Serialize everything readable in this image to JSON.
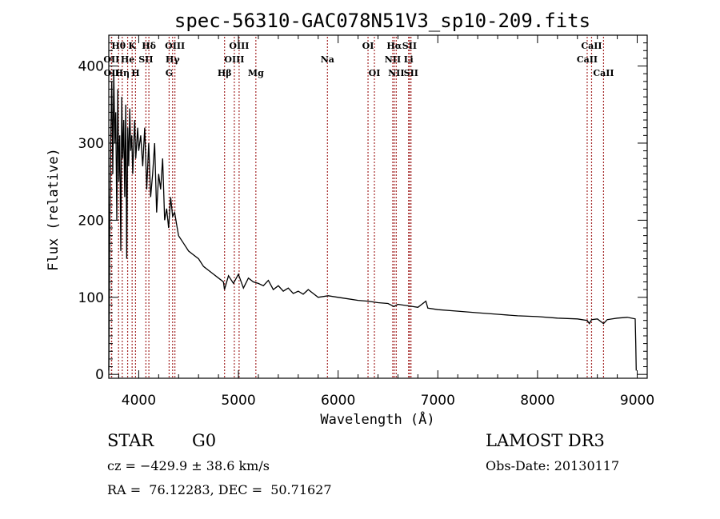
{
  "chart_data": {
    "type": "line",
    "title": "spec-56310-GAC078N51V3_sp10-209.fits",
    "xlabel": "Wavelength (Å)",
    "ylabel": "Flux (relative)",
    "xlim": [
      3700,
      9100
    ],
    "ylim": [
      -5,
      440
    ],
    "xticks": [
      4000,
      5000,
      6000,
      7000,
      8000,
      9000
    ],
    "xtick_labels": [
      "4000",
      "5000",
      "6000",
      "7000",
      "8000",
      "9000"
    ],
    "yticks": [
      0,
      100,
      200,
      300,
      400
    ],
    "ytick_labels": [
      "0",
      "100",
      "200",
      "300",
      "400"
    ],
    "grid": false,
    "series": [
      {
        "name": "spectrum",
        "color": "#000000",
        "x": [
          3700,
          3710,
          3720,
          3730,
          3740,
          3750,
          3760,
          3770,
          3780,
          3790,
          3800,
          3810,
          3820,
          3830,
          3840,
          3850,
          3860,
          3870,
          3880,
          3890,
          3900,
          3910,
          3920,
          3930,
          3940,
          3950,
          3960,
          3970,
          3980,
          3990,
          4000,
          4020,
          4040,
          4060,
          4080,
          4100,
          4120,
          4140,
          4160,
          4180,
          4200,
          4220,
          4240,
          4260,
          4280,
          4300,
          4320,
          4340,
          4360,
          4380,
          4400,
          4450,
          4500,
          4550,
          4600,
          4650,
          4700,
          4750,
          4800,
          4850,
          4860,
          4900,
          4950,
          5000,
          5050,
          5100,
          5150,
          5200,
          5250,
          5300,
          5350,
          5400,
          5450,
          5500,
          5550,
          5600,
          5650,
          5700,
          5750,
          5800,
          5900,
          6000,
          6100,
          6200,
          6300,
          6400,
          6500,
          6560,
          6600,
          6700,
          6800,
          6880,
          6900,
          7000,
          7200,
          7400,
          7600,
          7800,
          8000,
          8200,
          8400,
          8498,
          8520,
          8542,
          8600,
          8662,
          8700,
          8800,
          8900,
          8980,
          8985,
          8990
        ],
        "y": [
          5,
          200,
          310,
          380,
          260,
          395,
          300,
          340,
          200,
          370,
          250,
          310,
          160,
          360,
          280,
          330,
          230,
          350,
          150,
          320,
          270,
          345,
          290,
          310,
          260,
          300,
          330,
          280,
          300,
          320,
          290,
          310,
          270,
          320,
          240,
          300,
          230,
          260,
          300,
          210,
          260,
          240,
          280,
          200,
          215,
          190,
          230,
          205,
          210,
          195,
          180,
          170,
          160,
          155,
          150,
          140,
          135,
          130,
          125,
          120,
          110,
          128,
          118,
          130,
          112,
          125,
          120,
          118,
          115,
          122,
          110,
          115,
          108,
          112,
          105,
          108,
          104,
          110,
          105,
          100,
          102,
          100,
          98,
          96,
          95,
          93,
          92,
          88,
          91,
          89,
          87,
          95,
          86,
          84,
          82,
          80,
          78,
          76,
          75,
          73,
          72,
          70,
          66,
          71,
          72,
          66,
          71,
          73,
          74,
          72,
          40,
          5
        ]
      }
    ],
    "spectral_lines": [
      {
        "label": "Hθ",
        "wavelength": 3798,
        "row": 1
      },
      {
        "label": "K",
        "wavelength": 3934,
        "row": 1
      },
      {
        "label": "Hδ",
        "wavelength": 4102,
        "row": 1
      },
      {
        "label": "OIII",
        "wavelength": 4363,
        "row": 1
      },
      {
        "label": "OIII",
        "wavelength": 5007,
        "row": 1
      },
      {
        "label": "OI",
        "wavelength": 6300,
        "row": 1
      },
      {
        "label": "Hα",
        "wavelength": 6563,
        "row": 1
      },
      {
        "label": "SII",
        "wavelength": 6716,
        "row": 1
      },
      {
        "label": "CaII",
        "wavelength": 8542,
        "row": 1
      },
      {
        "label": "OII",
        "wavelength": 3727,
        "row": 2
      },
      {
        "label": "He",
        "wavelength": 3889,
        "row": 2
      },
      {
        "label": "SII",
        "wavelength": 4072,
        "row": 2
      },
      {
        "label": "Hγ",
        "wavelength": 4340,
        "row": 2
      },
      {
        "label": "OIII",
        "wavelength": 4959,
        "row": 2
      },
      {
        "label": "Na",
        "wavelength": 5893,
        "row": 2
      },
      {
        "label": "NII",
        "wavelength": 6548,
        "row": 2
      },
      {
        "label": "Li",
        "wavelength": 6707,
        "row": 2
      },
      {
        "label": "CaII",
        "wavelength": 8498,
        "row": 2
      },
      {
        "label": "OII",
        "wavelength": 3729,
        "row": 3
      },
      {
        "label": "Hη",
        "wavelength": 3835,
        "row": 3
      },
      {
        "label": "H",
        "wavelength": 3968,
        "row": 3
      },
      {
        "label": "G",
        "wavelength": 4305,
        "row": 3
      },
      {
        "label": "Hβ",
        "wavelength": 4861,
        "row": 3
      },
      {
        "label": "Mg",
        "wavelength": 5175,
        "row": 3
      },
      {
        "label": "OI",
        "wavelength": 6364,
        "row": 3
      },
      {
        "label": "NII",
        "wavelength": 6583,
        "row": 3
      },
      {
        "label": "SII",
        "wavelength": 6731,
        "row": 3
      },
      {
        "label": "CaII",
        "wavelength": 8662,
        "row": 3
      }
    ],
    "line_marker_color": "#a52a2a"
  },
  "info": {
    "object_class": "STAR",
    "subclass": "G0",
    "survey": "LAMOST DR3",
    "redshift_text": "cz = −429.9 ± 38.6 km/s",
    "obs_date": "Obs-Date: 20130117",
    "coords": "RA =  76.12283, DEC =  50.71627"
  }
}
